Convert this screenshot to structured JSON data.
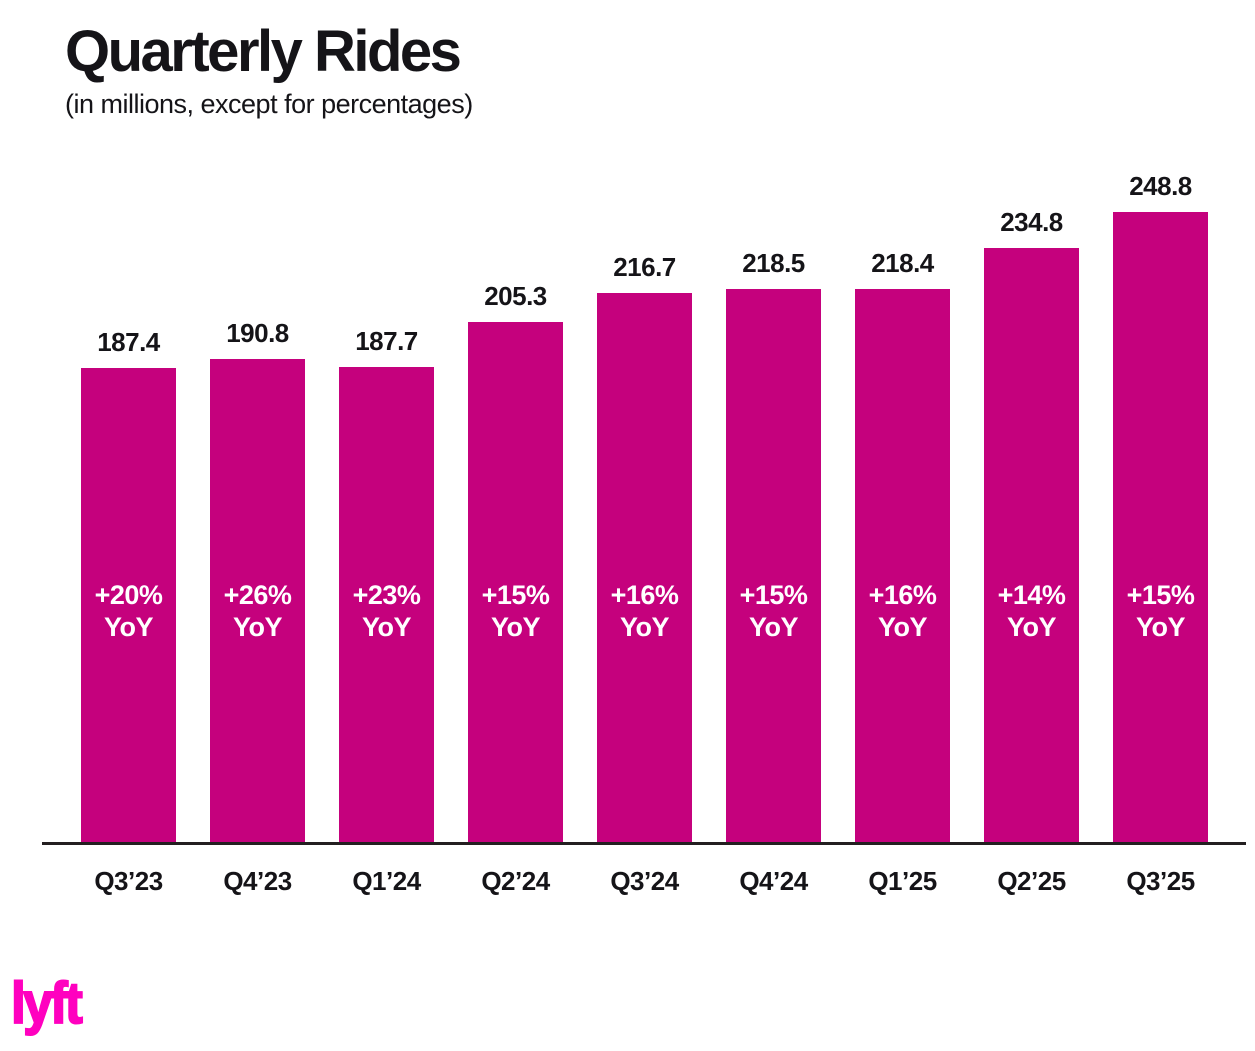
{
  "header": {
    "title": "Quarterly Rides",
    "subtitle": "(in millions, except for percentages)"
  },
  "chart_data": {
    "type": "bar",
    "title": "Quarterly Rides",
    "subtitle": "(in millions, except for percentages)",
    "categories": [
      "Q3’23",
      "Q4’23",
      "Q1’24",
      "Q2’24",
      "Q3’24",
      "Q4’24",
      "Q1’25",
      "Q2’25",
      "Q3’25"
    ],
    "values": [
      187.4,
      190.8,
      187.7,
      205.3,
      216.7,
      218.5,
      218.4,
      234.8,
      248.8
    ],
    "yoy_labels": [
      "+20%",
      "+26%",
      "+23%",
      "+15%",
      "+16%",
      "+15%",
      "+16%",
      "+14%",
      "+15%"
    ],
    "yoy_suffix": "YoY",
    "xlabel": "",
    "ylabel": "",
    "ylim": [
      0,
      248.8
    ],
    "grid": false,
    "legend": false,
    "bar_color": "#C5017D",
    "label_color": "#151418",
    "yoy_text_color": "#FFFFFF",
    "axis_line_color": "#231F20"
  },
  "footer": {
    "logo": "lyft",
    "logo_color": "#FF00BF"
  }
}
